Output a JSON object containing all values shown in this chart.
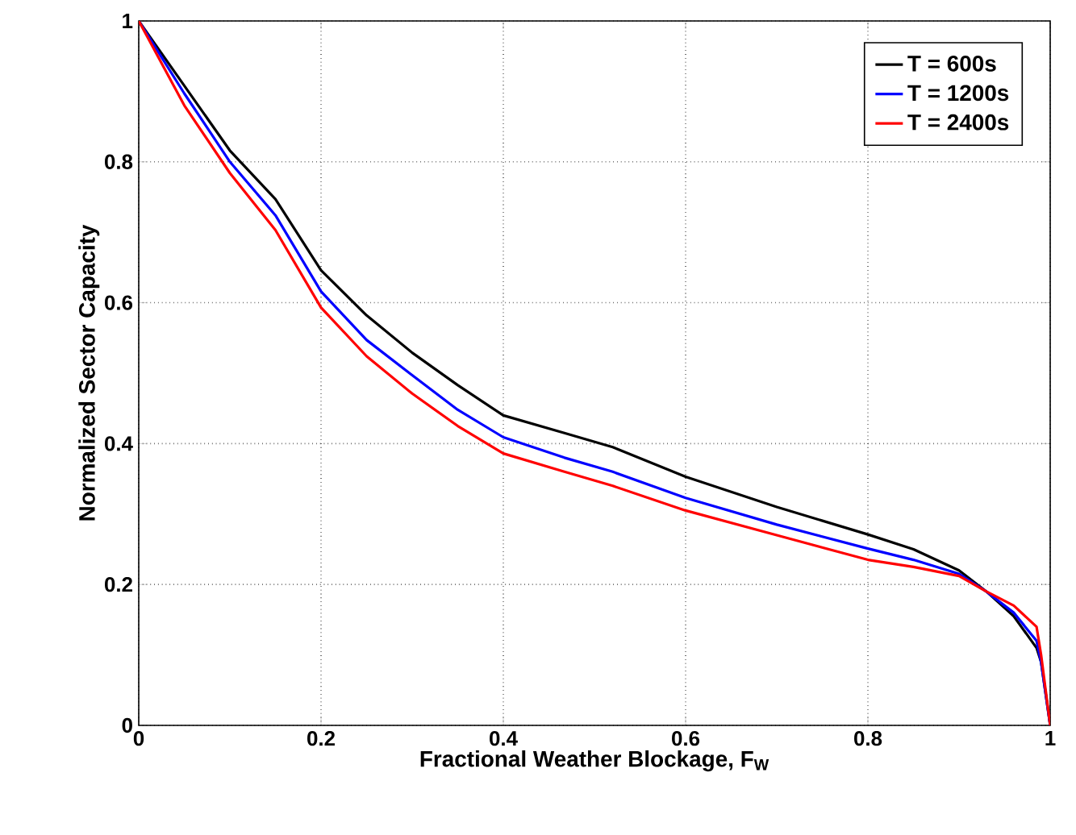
{
  "chart_data": {
    "type": "line",
    "xlabel": "Fractional Weather Blockage, F$_{W}$",
    "ylabel": "Normalized Sector Capacity",
    "x": [
      0,
      0.05,
      0.1,
      0.15,
      0.2,
      0.25,
      0.3,
      0.35,
      0.4,
      0.467,
      0.52,
      0.6,
      0.7,
      0.8,
      0.85,
      0.9,
      0.93,
      0.96,
      0.985,
      0.99,
      1
    ],
    "series": [
      {
        "name": "T = 600s",
        "color": "#000000",
        "values": [
          1,
          0.908,
          0.816,
          0.747,
          0.646,
          0.582,
          0.529,
          0.483,
          0.44,
          0.415,
          0.395,
          0.353,
          0.31,
          0.271,
          0.25,
          0.22,
          0.19,
          0.155,
          0.11,
          0.09,
          0
        ]
      },
      {
        "name": "T = 1200s",
        "color": "#0000ff",
        "values": [
          1,
          0.897,
          0.8,
          0.724,
          0.616,
          0.547,
          0.497,
          0.448,
          0.409,
          0.38,
          0.36,
          0.323,
          0.285,
          0.251,
          0.235,
          0.215,
          0.19,
          0.16,
          0.12,
          0.09,
          0
        ]
      },
      {
        "name": "T = 2400s",
        "color": "#ff0000",
        "values": [
          1,
          0.88,
          0.784,
          0.703,
          0.593,
          0.524,
          0.471,
          0.425,
          0.386,
          0.36,
          0.34,
          0.305,
          0.27,
          0.235,
          0.225,
          0.212,
          0.19,
          0.17,
          0.14,
          0.1,
          0
        ]
      }
    ],
    "xlim": [
      0,
      1
    ],
    "ylim": [
      0,
      1
    ],
    "xticks": [
      0,
      0.2,
      0.4,
      0.6,
      0.8,
      1
    ],
    "yticks": [
      0,
      0.2,
      0.4,
      0.6,
      0.8,
      1
    ],
    "grid": true,
    "legend": "top right",
    "marker": "none",
    "line_style": "solid"
  }
}
